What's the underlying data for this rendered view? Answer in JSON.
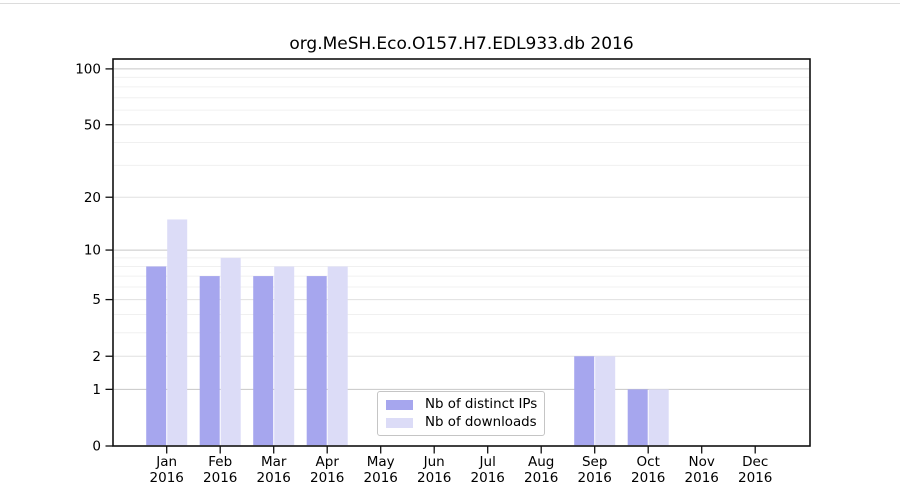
{
  "chart_data": {
    "type": "bar",
    "title": "org.MeSH.Eco.O157.H7.EDL933.db 2016",
    "x_tick_labels": [
      {
        "month": "Jan",
        "year": "2016"
      },
      {
        "month": "Feb",
        "year": "2016"
      },
      {
        "month": "Mar",
        "year": "2016"
      },
      {
        "month": "Apr",
        "year": "2016"
      },
      {
        "month": "May",
        "year": "2016"
      },
      {
        "month": "Jun",
        "year": "2016"
      },
      {
        "month": "Jul",
        "year": "2016"
      },
      {
        "month": "Aug",
        "year": "2016"
      },
      {
        "month": "Sep",
        "year": "2016"
      },
      {
        "month": "Oct",
        "year": "2016"
      },
      {
        "month": "Nov",
        "year": "2016"
      },
      {
        "month": "Dec",
        "year": "2016"
      }
    ],
    "series": [
      {
        "name": "Nb of distinct IPs",
        "color": "#a6a6ee",
        "values": [
          8,
          7,
          7,
          7,
          0,
          0,
          0,
          0,
          2,
          1,
          0,
          0
        ]
      },
      {
        "name": "Nb of downloads",
        "color": "#dcdcf7",
        "values": [
          15,
          9,
          8,
          8,
          0,
          0,
          0,
          0,
          2,
          1,
          0,
          0
        ]
      }
    ],
    "yscale": "log1p",
    "ylim": [
      0,
      113
    ],
    "y_major_ticks": [
      0,
      1,
      2,
      5,
      10,
      20,
      50,
      100
    ],
    "y_mid_gridlines": [
      2,
      5,
      20,
      50
    ],
    "y_minor_gridlines": [
      3,
      4,
      6,
      7,
      8,
      9,
      30,
      40,
      60,
      70,
      80,
      90
    ],
    "grid": true,
    "legend_position": "lower center",
    "colors": {
      "axis": "#111111",
      "text": "#000000",
      "grid_major": "#c7c7c7",
      "grid_mid": "#e0e0e0",
      "grid_minor": "#f0f0f0"
    }
  }
}
